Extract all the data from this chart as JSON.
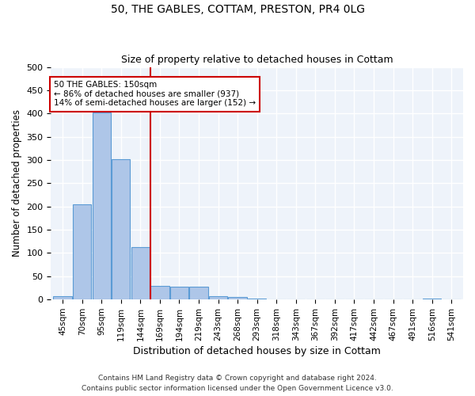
{
  "title1": "50, THE GABLES, COTTAM, PRESTON, PR4 0LG",
  "title2": "Size of property relative to detached houses in Cottam",
  "xlabel": "Distribution of detached houses by size in Cottam",
  "ylabel": "Number of detached properties",
  "bin_labels": [
    "45sqm",
    "70sqm",
    "95sqm",
    "119sqm",
    "144sqm",
    "169sqm",
    "194sqm",
    "219sqm",
    "243sqm",
    "268sqm",
    "293sqm",
    "318sqm",
    "343sqm",
    "367sqm",
    "392sqm",
    "417sqm",
    "442sqm",
    "467sqm",
    "491sqm",
    "516sqm",
    "541sqm"
  ],
  "bar_heights": [
    8,
    205,
    403,
    302,
    112,
    30,
    28,
    28,
    7,
    5,
    2,
    0,
    0,
    0,
    0,
    0,
    0,
    0,
    0,
    2,
    0
  ],
  "bar_color": "#AEC6E8",
  "bar_edge_color": "#5B9BD5",
  "bg_color": "#EEF3FA",
  "grid_color": "#FFFFFF",
  "vline_color": "#CC0000",
  "annotation_title": "50 THE GABLES: 150sqm",
  "annotation_line1": "← 86% of detached houses are smaller (937)",
  "annotation_line2": "14% of semi-detached houses are larger (152) →",
  "annotation_box_color": "#CC0000",
  "ylim": [
    0,
    500
  ],
  "yticks": [
    0,
    50,
    100,
    150,
    200,
    250,
    300,
    350,
    400,
    450,
    500
  ],
  "footer1": "Contains HM Land Registry data © Crown copyright and database right 2024.",
  "footer2": "Contains public sector information licensed under the Open Government Licence v3.0."
}
